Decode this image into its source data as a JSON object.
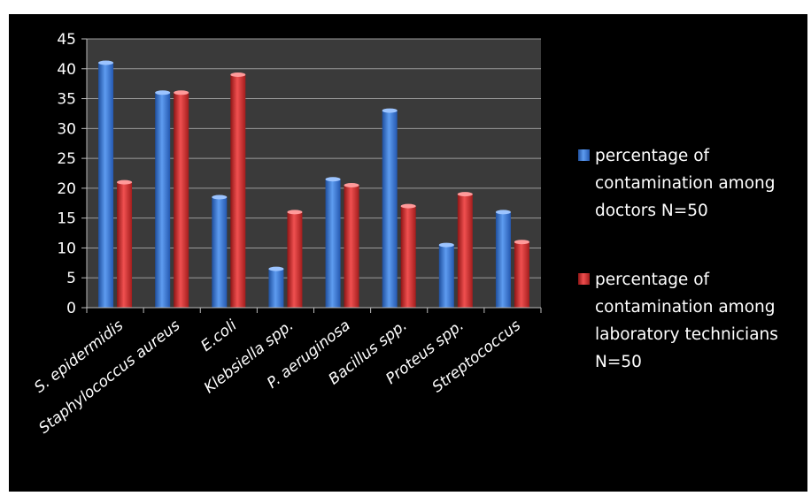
{
  "chart_data": {
    "type": "bar",
    "categories": [
      "S. epidermidis",
      "Staphylococcus aureus",
      "E.coli",
      "Klebsiella spp.",
      "P. aeruginosa",
      "Bacillus spp.",
      "Proteus spp.",
      "Streptococcus"
    ],
    "series": [
      {
        "name": "percentage of contamination among doctors N=50",
        "name_lines": [
          "percentage of",
          "contamination among",
          "doctors N=50"
        ],
        "color": "#3b78d6",
        "values": [
          41,
          36,
          18.5,
          6.5,
          21.5,
          33,
          10.5,
          16
        ]
      },
      {
        "name": "percentage of contamination among laboratory technicians N=50",
        "name_lines": [
          "percentage of",
          "contamination among",
          "laboratory technicians",
          "N=50"
        ],
        "color": "#d93030",
        "values": [
          21,
          36,
          39,
          16,
          20.5,
          17,
          19,
          11
        ]
      }
    ],
    "yticks": [
      "0",
      "5",
      "10",
      "15",
      "20",
      "25",
      "30",
      "35",
      "40",
      "45"
    ],
    "ylim": [
      0,
      45
    ],
    "grid": true,
    "legend": "right",
    "plot_background": "#3a3a3a",
    "frame_background": "#000000"
  }
}
